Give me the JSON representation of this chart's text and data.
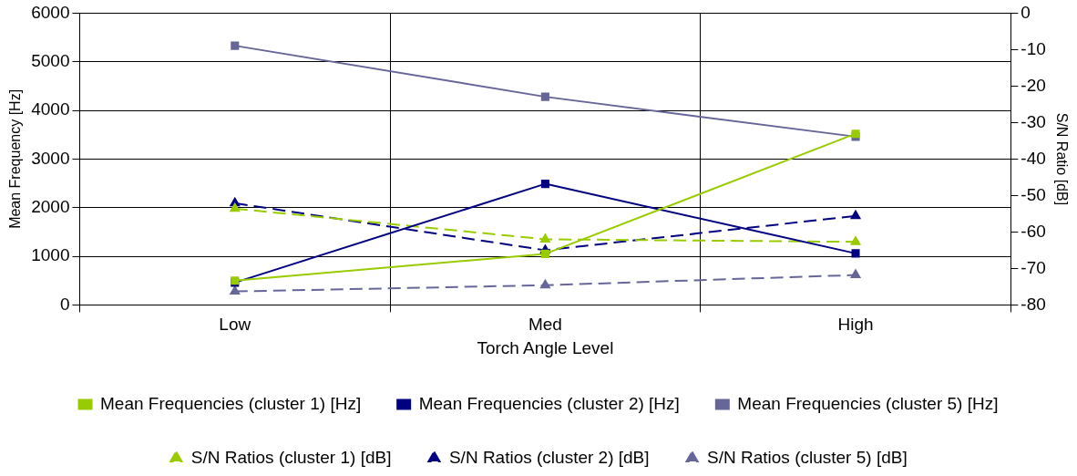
{
  "chart_data": {
    "type": "line",
    "xlabel": "Torch Angle Level",
    "ylabel": "Mean Frequency [Hz]",
    "y2label": "S/N Ratio [dB]",
    "categories": [
      "Low",
      "Med",
      "High"
    ],
    "series": [
      {
        "name": "Mean Frequencies (cluster 1) [Hz]",
        "color": "#99cc00",
        "values": [
          500,
          1050,
          3520
        ],
        "marker": "square",
        "line_style": "solid"
      },
      {
        "name": "Mean Frequencies (cluster 2) [Hz]",
        "color": "#000080",
        "values": [
          460,
          2490,
          1060
        ],
        "marker": "square",
        "line_style": "solid"
      },
      {
        "name": "Mean Frequencies (cluster 5) [Hz]",
        "color": "#666699",
        "values": [
          5330,
          4280,
          3460
        ],
        "marker": "square",
        "line_style": "solid"
      },
      {
        "name": "S/N Ratios (cluster 1) [dB]",
        "color": "#99cc00",
        "values": [
          -53.6,
          -62,
          -62.7
        ],
        "axis": "y2",
        "marker": "triangle",
        "line_style": "dashed"
      },
      {
        "name": "S/N Ratios (cluster 2) [dB]",
        "color": "#000080",
        "values": [
          -52.1,
          -65,
          -55.6
        ],
        "axis": "y2",
        "marker": "triangle",
        "line_style": "dashed"
      },
      {
        "name": "S/N Ratios (cluster 5) [dB]",
        "color": "#666699",
        "values": [
          -76.3,
          -74.6,
          -71.8
        ],
        "axis": "y2",
        "marker": "triangle",
        "line_style": "dashed"
      }
    ],
    "ylim": [
      0,
      6000
    ],
    "yticks": [
      0,
      1000,
      2000,
      3000,
      4000,
      5000,
      6000
    ],
    "y2lim": [
      -80,
      0
    ],
    "y2ticks": [
      -80,
      -70,
      -60,
      -50,
      -40,
      -30,
      -20,
      -10,
      0
    ],
    "grid": true,
    "legend": "bottom"
  }
}
